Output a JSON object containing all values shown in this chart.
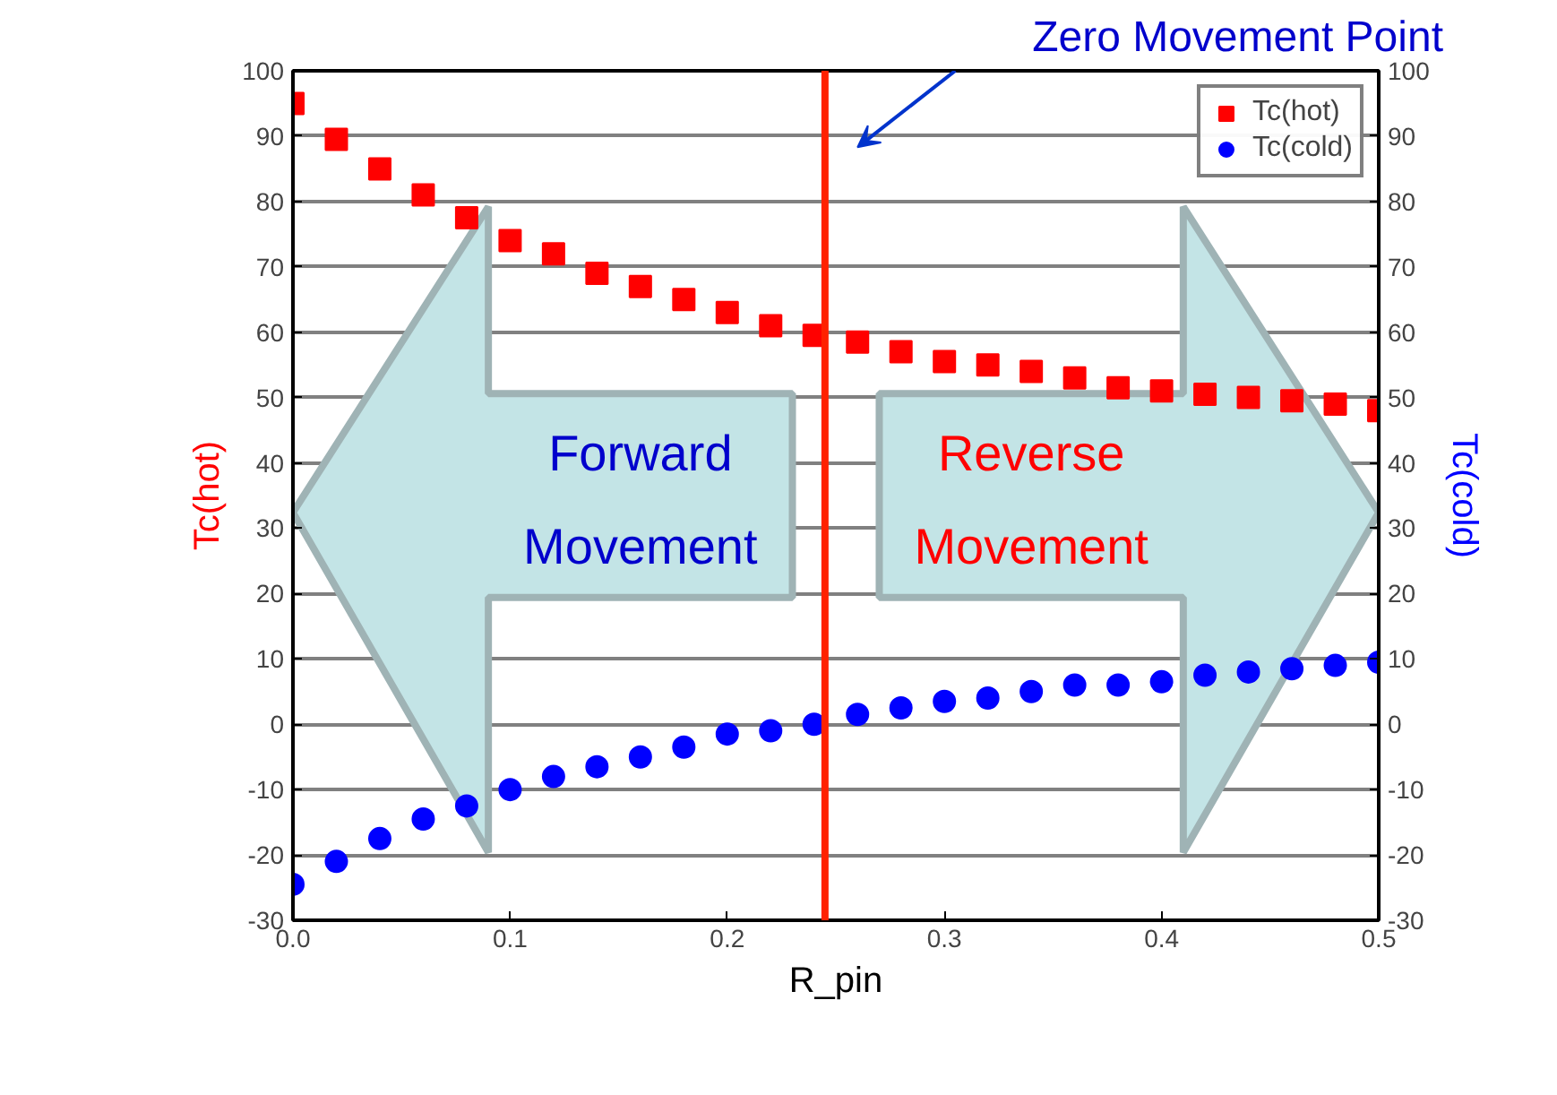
{
  "chart_data": {
    "type": "scatter",
    "xlabel": "R_pin",
    "ylabel": "Tc(hot)",
    "y2label": "Tc(cold)",
    "x": [
      0,
      0.02,
      0.04,
      0.06,
      0.08,
      0.1,
      0.12,
      0.14,
      0.16,
      0.18,
      0.2,
      0.22,
      0.24,
      0.26,
      0.28,
      0.3,
      0.32,
      0.34,
      0.36,
      0.38,
      0.4,
      0.42,
      0.44,
      0.46,
      0.48,
      0.5
    ],
    "series": [
      {
        "name": "Tc(hot)",
        "color": "#ff0000",
        "marker": "square",
        "values": [
          95,
          89.5,
          85,
          81,
          77.5,
          74,
          72,
          69,
          67,
          65,
          63,
          61,
          59.5,
          58.5,
          57,
          55.5,
          55,
          54,
          53,
          51.5,
          51,
          50.5,
          50,
          49.5,
          49,
          48
        ]
      },
      {
        "name": "Tc(cold)",
        "color": "#0000ff",
        "marker": "circle",
        "axis": "y2",
        "values": [
          -24.5,
          -21,
          -17.5,
          -14.5,
          -12.5,
          -10,
          -8,
          -6.5,
          -5,
          -3.5,
          -1.5,
          -1,
          0,
          1.5,
          2.5,
          3.5,
          4,
          5,
          6,
          6,
          6.5,
          7.5,
          8,
          8.5,
          9,
          9.5
        ]
      }
    ],
    "xlim": [
      0,
      0.5
    ],
    "xticks": [
      {
        "value": 0,
        "label": "0.0"
      },
      {
        "value": 0.1,
        "label": "0.1"
      },
      {
        "value": 0.2,
        "label": "0.2"
      },
      {
        "value": 0.3,
        "label": "0.3"
      },
      {
        "value": 0.4,
        "label": "0.4"
      },
      {
        "value": 0.5,
        "label": "0.5"
      }
    ],
    "ylim": [
      -30,
      100
    ],
    "yticks": [
      -30,
      -20,
      -10,
      0,
      10,
      20,
      30,
      40,
      50,
      60,
      70,
      80,
      90,
      100
    ],
    "y2lim": [
      -30,
      100
    ],
    "y2ticks": [
      -30,
      -20,
      -10,
      0,
      10,
      20,
      30,
      40,
      50,
      60,
      70,
      80,
      90,
      100
    ],
    "ref_lines": [
      {
        "axis": "x",
        "value": 0.245,
        "color": "#ff2200"
      }
    ],
    "annotations": [
      "Forward Movement",
      "Reverse Movement",
      "Zero Movement Point"
    ],
    "grid": "y",
    "legend": "top right"
  }
}
